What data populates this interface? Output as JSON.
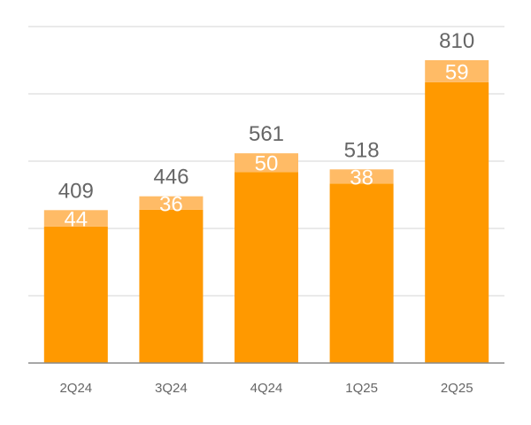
{
  "chart_data": {
    "type": "bar",
    "stacked": true,
    "categories": [
      "2Q24",
      "3Q24",
      "4Q24",
      "1Q25",
      "2Q25"
    ],
    "totals": [
      409,
      446,
      561,
      518,
      810
    ],
    "series": [
      {
        "values": [
          365,
          410,
          511,
          480,
          751
        ],
        "color": "#FF9900"
      },
      {
        "values": [
          44,
          36,
          50,
          38,
          59
        ],
        "color": "#FFBB66"
      }
    ],
    "ylim": [
      0,
      900
    ],
    "grid": true,
    "legend": "none"
  }
}
